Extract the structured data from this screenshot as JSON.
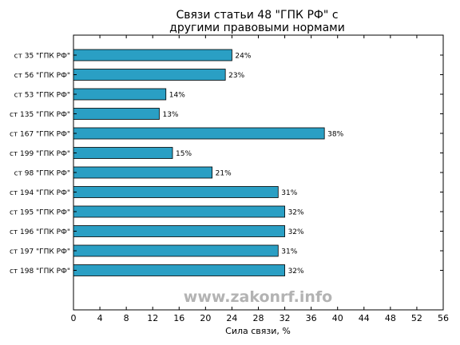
{
  "chart_data": {
    "type": "bar",
    "orientation": "horizontal",
    "title_lines": [
      "Связи статьи 48 \"ГПК РФ\" с",
      "другими правовыми нормами"
    ],
    "xlabel": "Сила связи, %",
    "ylabel": "",
    "xlim": [
      0,
      56
    ],
    "xticks": [
      0,
      4,
      8,
      12,
      16,
      20,
      24,
      28,
      32,
      36,
      40,
      44,
      48,
      52,
      56
    ],
    "grid": false,
    "categories": [
      "ст 35 \"ГПК РФ\"",
      "ст 56 \"ГПК РФ\"",
      "ст 53 \"ГПК РФ\"",
      "ст 135 \"ГПК РФ\"",
      "ст 167 \"ГПК РФ\"",
      "ст 199 \"ГПК РФ\"",
      "ст 98 \"ГПК РФ\"",
      "ст 194 \"ГПК РФ\"",
      "ст 195 \"ГПК РФ\"",
      "ст 196 \"ГПК РФ\"",
      "ст 197 \"ГПК РФ\"",
      "ст 198 \"ГПК РФ\""
    ],
    "values": [
      24,
      23,
      14,
      13,
      38,
      15,
      21,
      31,
      32,
      32,
      31,
      32
    ],
    "data_labels": [
      "24%",
      "23%",
      "14%",
      "13%",
      "38%",
      "15%",
      "21%",
      "31%",
      "32%",
      "32%",
      "31%",
      "32%"
    ],
    "bar_color": "#2a9fc4",
    "bar_edge_color": "#000000"
  },
  "watermark": "www.zakonrf.info"
}
